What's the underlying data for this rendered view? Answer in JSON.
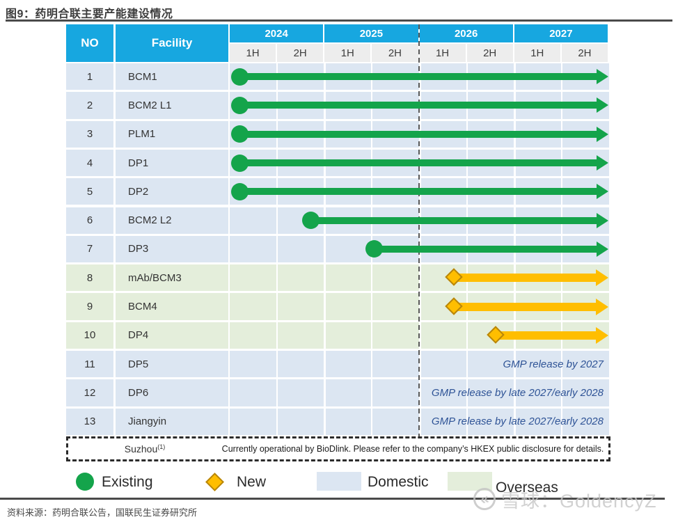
{
  "figure": {
    "title": "图9：药明合联主要产能建设情况",
    "source": "资料来源：药明合联公告，国联民生证券研究所",
    "watermark": {
      "brand": "雪球",
      "separator": "：",
      "handle": "GoldencyZ",
      "logo_glyph": "«"
    }
  },
  "table_header": {
    "no": "NO",
    "facility": "Facility",
    "years": [
      "2024",
      "2025",
      "2026",
      "2027"
    ],
    "half_labels": [
      "1H",
      "2H",
      "1H",
      "2H",
      "1H",
      "2H",
      "1H",
      "2H"
    ]
  },
  "legend": {
    "items": [
      {
        "label": "Existing",
        "marker": "circle-icon",
        "color": "#14a44b"
      },
      {
        "label": "New",
        "marker": "diamond-icon",
        "color": "#ffbe00"
      },
      {
        "label": "Domestic",
        "marker": "swatch",
        "color": "#dce6f2"
      },
      {
        "label": "Overseas",
        "marker": "swatch",
        "color": "#e4eedb"
      }
    ]
  },
  "footnote": {
    "facility": "Suzhou",
    "superscript": "(1)",
    "text": "Currently operational by BioDlink. Please refer to the company’s HKEX public disclosure for details."
  },
  "colors": {
    "header_cyan": "#17a7e0",
    "half_header_bg": "#ededed",
    "domestic_bg": "#dce6f2",
    "overseas_bg": "#e4eedb",
    "existing_green": "#14a44b",
    "new_yellow": "#ffbe00",
    "new_yellow_border": "#b8860b",
    "note_blue": "#2e5396",
    "dash_gray": "#595959"
  },
  "chart_data": {
    "type": "gantt",
    "title": "药明合联主要产能建设情况",
    "x_axis": {
      "years": [
        "2024",
        "2025",
        "2026",
        "2027"
      ],
      "periods": [
        "2024 1H",
        "2024 2H",
        "2025 1H",
        "2025 2H",
        "2026 1H",
        "2026 2H",
        "2027 1H",
        "2027 2H"
      ],
      "dashed_divider_between": [
        "2025 2H",
        "2026 1H"
      ]
    },
    "legend_meaning": {
      "circle": "Existing",
      "diamond": "New",
      "blue_row": "Domestic",
      "green_row": "Overseas"
    },
    "rows": [
      {
        "no": "1",
        "facility": "BCM1",
        "region": "domestic",
        "bar": {
          "type": "existing",
          "start": "2024 1H",
          "start_pct": 2.8,
          "end_pct": 99.5,
          "open_ended": true
        }
      },
      {
        "no": "2",
        "facility": "BCM2 L1",
        "region": "domestic",
        "bar": {
          "type": "existing",
          "start": "2024 1H",
          "start_pct": 2.8,
          "end_pct": 99.5,
          "open_ended": true
        }
      },
      {
        "no": "3",
        "facility": "PLM1",
        "region": "domestic",
        "bar": {
          "type": "existing",
          "start": "2024 1H",
          "start_pct": 2.8,
          "end_pct": 99.5,
          "open_ended": true
        }
      },
      {
        "no": "4",
        "facility": "DP1",
        "region": "domestic",
        "bar": {
          "type": "existing",
          "start": "2024 1H",
          "start_pct": 2.8,
          "end_pct": 99.5,
          "open_ended": true
        }
      },
      {
        "no": "5",
        "facility": "DP2",
        "region": "domestic",
        "bar": {
          "type": "existing",
          "start": "2024 1H",
          "start_pct": 2.8,
          "end_pct": 99.5,
          "open_ended": true
        }
      },
      {
        "no": "6",
        "facility": "BCM2 L2",
        "region": "domestic",
        "bar": {
          "type": "existing",
          "start": "2024 2H",
          "start_pct": 21.5,
          "end_pct": 99.5,
          "open_ended": true
        }
      },
      {
        "no": "7",
        "facility": "DP3",
        "region": "domestic",
        "bar": {
          "type": "existing",
          "start": "2025 2H",
          "start_pct": 38.2,
          "end_pct": 99.5,
          "open_ended": true
        }
      },
      {
        "no": "8",
        "facility": "mAb/BCM3",
        "region": "overseas",
        "bar": {
          "type": "new",
          "start": "2026 1H",
          "start_pct": 59.3,
          "end_pct": 99.5,
          "open_ended": true
        }
      },
      {
        "no": "9",
        "facility": "BCM4",
        "region": "overseas",
        "bar": {
          "type": "new",
          "start": "2026 1H",
          "start_pct": 59.3,
          "end_pct": 99.5,
          "open_ended": true
        }
      },
      {
        "no": "10",
        "facility": "DP4",
        "region": "overseas",
        "bar": {
          "type": "new",
          "start": "2026 2H",
          "start_pct": 70.3,
          "end_pct": 99.5,
          "open_ended": true
        }
      },
      {
        "no": "11",
        "facility": "DP5",
        "region": "domestic",
        "note": "GMP release by 2027"
      },
      {
        "no": "12",
        "facility": "DP6",
        "region": "domestic",
        "note": "GMP release by late 2027/early 2028"
      },
      {
        "no": "13",
        "facility": "Jiangyin",
        "region": "domestic",
        "note": "GMP release by late 2027/early 2028"
      }
    ]
  }
}
